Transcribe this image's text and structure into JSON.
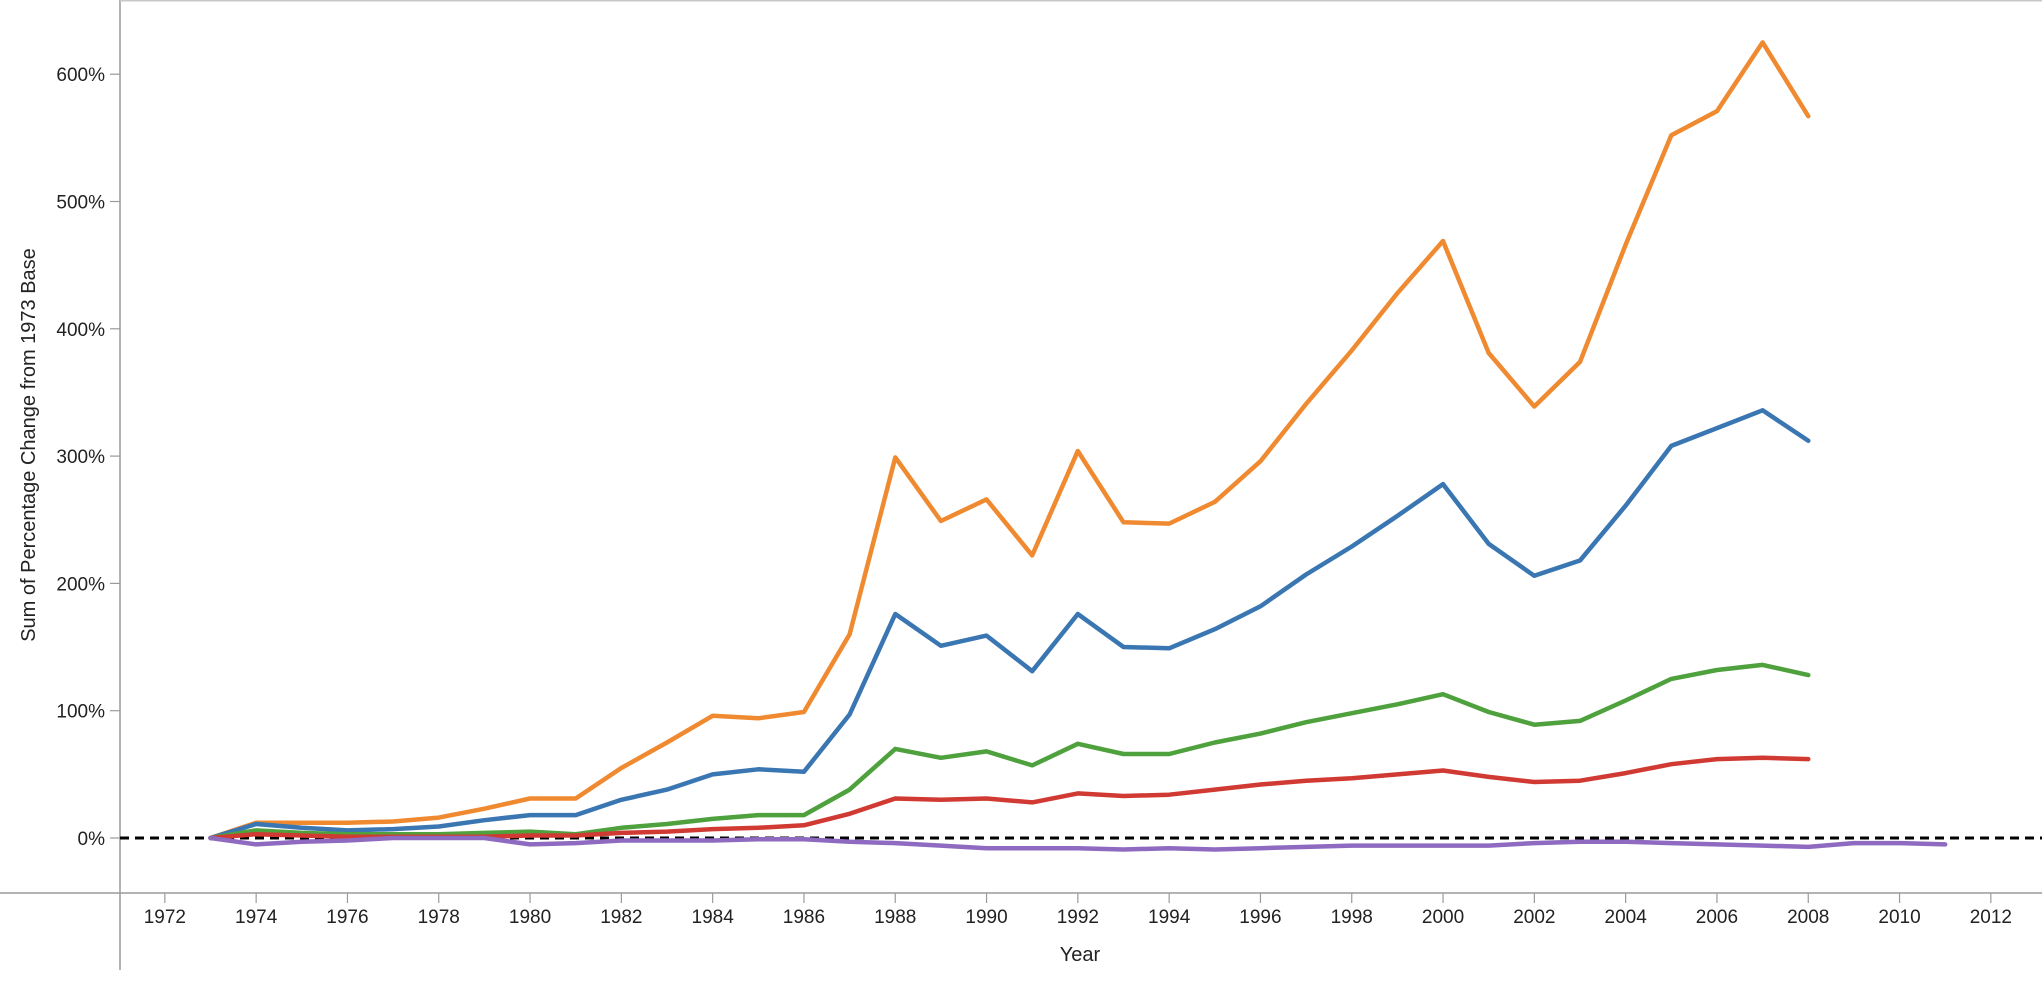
{
  "chart_data": {
    "type": "line",
    "xlabel": "Year",
    "ylabel": "Sum of Percentage Change from 1973 Base",
    "xlim": [
      1971,
      2013
    ],
    "ylim": [
      -50,
      650
    ],
    "x_ticks": [
      "1972",
      "1974",
      "1976",
      "1978",
      "1980",
      "1982",
      "1984",
      "1986",
      "1988",
      "1990",
      "1992",
      "1994",
      "1996",
      "1998",
      "2000",
      "2002",
      "2004",
      "2006",
      "2008",
      "2010",
      "2012"
    ],
    "y_ticks": [
      {
        "value": 0,
        "label": "0%"
      },
      {
        "value": 100,
        "label": "100%"
      },
      {
        "value": 200,
        "label": "200%"
      },
      {
        "value": 300,
        "label": "300%"
      },
      {
        "value": 400,
        "label": "400%"
      },
      {
        "value": 500,
        "label": "500%"
      },
      {
        "value": 600,
        "label": "600%"
      }
    ],
    "baseline": {
      "value": 0,
      "style": "dashed",
      "color": "#000000"
    },
    "grid": false,
    "legend": "none",
    "series": [
      {
        "color": "#f08a31",
        "x": [
          1973,
          1974,
          1975,
          1976,
          1977,
          1978,
          1979,
          1980,
          1981,
          1982,
          1983,
          1984,
          1985,
          1986,
          1987,
          1988,
          1989,
          1990,
          1991,
          1992,
          1993,
          1994,
          1995,
          1996,
          1997,
          1998,
          1999,
          2000,
          2001,
          2002,
          2003,
          2004,
          2005,
          2006,
          2007,
          2008
        ],
        "y": [
          0,
          12,
          12,
          12,
          13,
          16,
          23,
          31,
          31,
          55,
          75,
          96,
          94,
          99,
          160,
          299,
          249,
          266,
          222,
          304,
          248,
          247,
          264,
          296,
          341,
          383,
          428,
          469,
          381,
          339,
          374,
          466,
          552,
          571,
          625,
          567
        ]
      },
      {
        "color": "#3a76b1",
        "x": [
          1973,
          1974,
          1975,
          1976,
          1977,
          1978,
          1979,
          1980,
          1981,
          1982,
          1983,
          1984,
          1985,
          1986,
          1987,
          1988,
          1989,
          1990,
          1991,
          1992,
          1993,
          1994,
          1995,
          1996,
          1997,
          1998,
          1999,
          2000,
          2001,
          2002,
          2003,
          2004,
          2005,
          2006,
          2007,
          2008
        ],
        "y": [
          0,
          11,
          8,
          6,
          7,
          9,
          14,
          18,
          18,
          30,
          38,
          50,
          54,
          52,
          97,
          176,
          151,
          159,
          131,
          176,
          150,
          149,
          164,
          182,
          207,
          229,
          253,
          278,
          231,
          206,
          218,
          261,
          308,
          322,
          336,
          312
        ]
      },
      {
        "color": "#4ea13d",
        "x": [
          1973,
          1974,
          1975,
          1976,
          1977,
          1978,
          1979,
          1980,
          1981,
          1982,
          1983,
          1984,
          1985,
          1986,
          1987,
          1988,
          1989,
          1990,
          1991,
          1992,
          1993,
          1994,
          1995,
          1996,
          1997,
          1998,
          1999,
          2000,
          2001,
          2002,
          2003,
          2004,
          2005,
          2006,
          2007,
          2008
        ],
        "y": [
          0,
          6,
          4,
          3,
          3,
          3,
          4,
          5,
          3,
          8,
          11,
          15,
          18,
          18,
          38,
          70,
          63,
          68,
          57,
          74,
          66,
          66,
          75,
          82,
          91,
          98,
          105,
          113,
          99,
          89,
          92,
          108,
          125,
          132,
          136,
          128
        ]
      },
      {
        "color": "#d03a33",
        "x": [
          1973,
          1974,
          1975,
          1976,
          1977,
          1978,
          1979,
          1980,
          1981,
          1982,
          1983,
          1984,
          1985,
          1986,
          1987,
          1988,
          1989,
          1990,
          1991,
          1992,
          1993,
          1994,
          1995,
          1996,
          1997,
          1998,
          1999,
          2000,
          2001,
          2002,
          2003,
          2004,
          2005,
          2006,
          2007,
          2008
        ],
        "y": [
          0,
          3,
          2,
          1,
          1,
          1,
          1,
          2,
          2,
          4,
          5,
          7,
          8,
          10,
          19,
          31,
          30,
          31,
          28,
          35,
          33,
          34,
          38,
          42,
          45,
          47,
          50,
          53,
          48,
          44,
          45,
          51,
          58,
          62,
          63,
          62
        ]
      },
      {
        "color": "#8e6ac1",
        "x": [
          1973,
          1974,
          1975,
          1976,
          1977,
          1978,
          1979,
          1980,
          1981,
          1982,
          1983,
          1984,
          1985,
          1986,
          1987,
          1988,
          1989,
          1990,
          1991,
          1992,
          1993,
          1994,
          1995,
          1996,
          1997,
          1998,
          1999,
          2000,
          2001,
          2002,
          2003,
          2004,
          2005,
          2006,
          2007,
          2008,
          2009,
          2010,
          2011
        ],
        "y": [
          0,
          -5,
          -3,
          -2,
          0,
          0,
          0,
          -5,
          -4,
          -2,
          -2,
          -2,
          -1,
          -1,
          -3,
          -4,
          -6,
          -8,
          -8,
          -8,
          -9,
          -8,
          -9,
          -8,
          -7,
          -6,
          -6,
          -6,
          -6,
          -4,
          -3,
          -3,
          -4,
          -5,
          -6,
          -7,
          -4,
          -4,
          -5
        ]
      }
    ]
  }
}
